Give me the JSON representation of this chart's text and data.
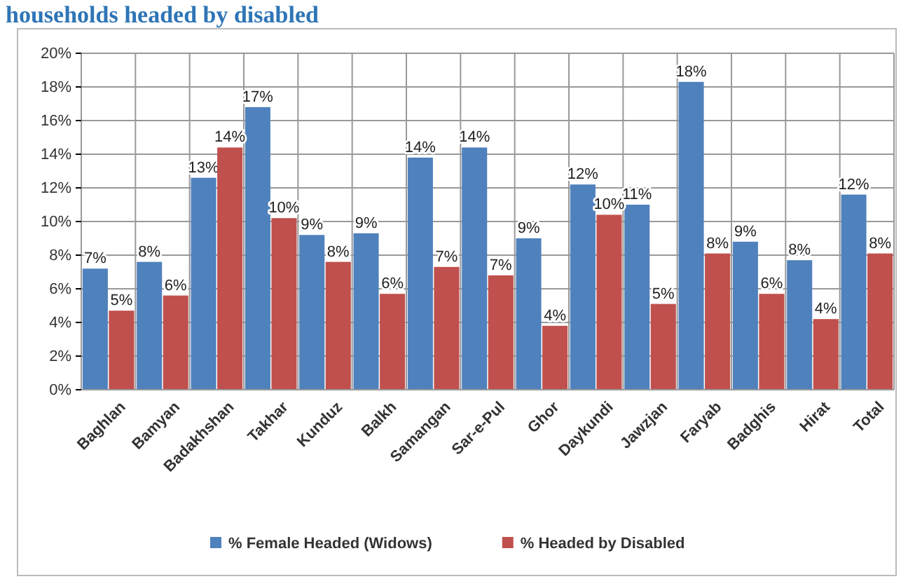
{
  "chart_data": {
    "type": "bar",
    "title": "households headed by disabled",
    "categories": [
      "Baghlan",
      "Bamyan",
      "Badakhshan",
      "Takhar",
      "Kunduz",
      "Balkh",
      "Samangan",
      "Sar-e-Pul",
      "Ghor",
      "Daykundi",
      "Jawzjan",
      "Faryab",
      "Badghis",
      "Hirat",
      "Total"
    ],
    "series": [
      {
        "name": "% Female Headed (Widows)",
        "color": "#4f81bd",
        "values": [
          7.2,
          7.6,
          12.6,
          16.8,
          9.2,
          9.3,
          13.8,
          14.4,
          9.0,
          12.2,
          11.0,
          18.3,
          8.8,
          7.7,
          11.6
        ],
        "value_labels": [
          "7%",
          "8%",
          "13%",
          "17%",
          "9%",
          "9%",
          "14%",
          "14%",
          "9%",
          "12%",
          "11%",
          "18%",
          "9%",
          "8%",
          "12%"
        ]
      },
      {
        "name": "% Headed by Disabled",
        "color": "#c0504d",
        "values": [
          4.7,
          5.6,
          14.4,
          10.2,
          7.6,
          5.7,
          7.3,
          6.8,
          3.8,
          10.4,
          5.1,
          8.1,
          5.7,
          4.2,
          8.1
        ],
        "value_labels": [
          "5%",
          "6%",
          "14%",
          "10%",
          "8%",
          "6%",
          "7%",
          "7%",
          "4%",
          "10%",
          "5%",
          "8%",
          "6%",
          "4%",
          "8%"
        ]
      }
    ],
    "ylim": [
      0,
      20
    ],
    "yticks": [
      {
        "value": 0,
        "label": "0%"
      },
      {
        "value": 2,
        "label": "2%"
      },
      {
        "value": 4,
        "label": "4%"
      },
      {
        "value": 6,
        "label": "6%"
      },
      {
        "value": 8,
        "label": "8%"
      },
      {
        "value": 10,
        "label": "10%"
      },
      {
        "value": 12,
        "label": "12%"
      },
      {
        "value": 14,
        "label": "14%"
      },
      {
        "value": 16,
        "label": "16%"
      },
      {
        "value": 18,
        "label": "18%"
      },
      {
        "value": 20,
        "label": "20%"
      }
    ],
    "grid": true,
    "legend": "bottom"
  }
}
